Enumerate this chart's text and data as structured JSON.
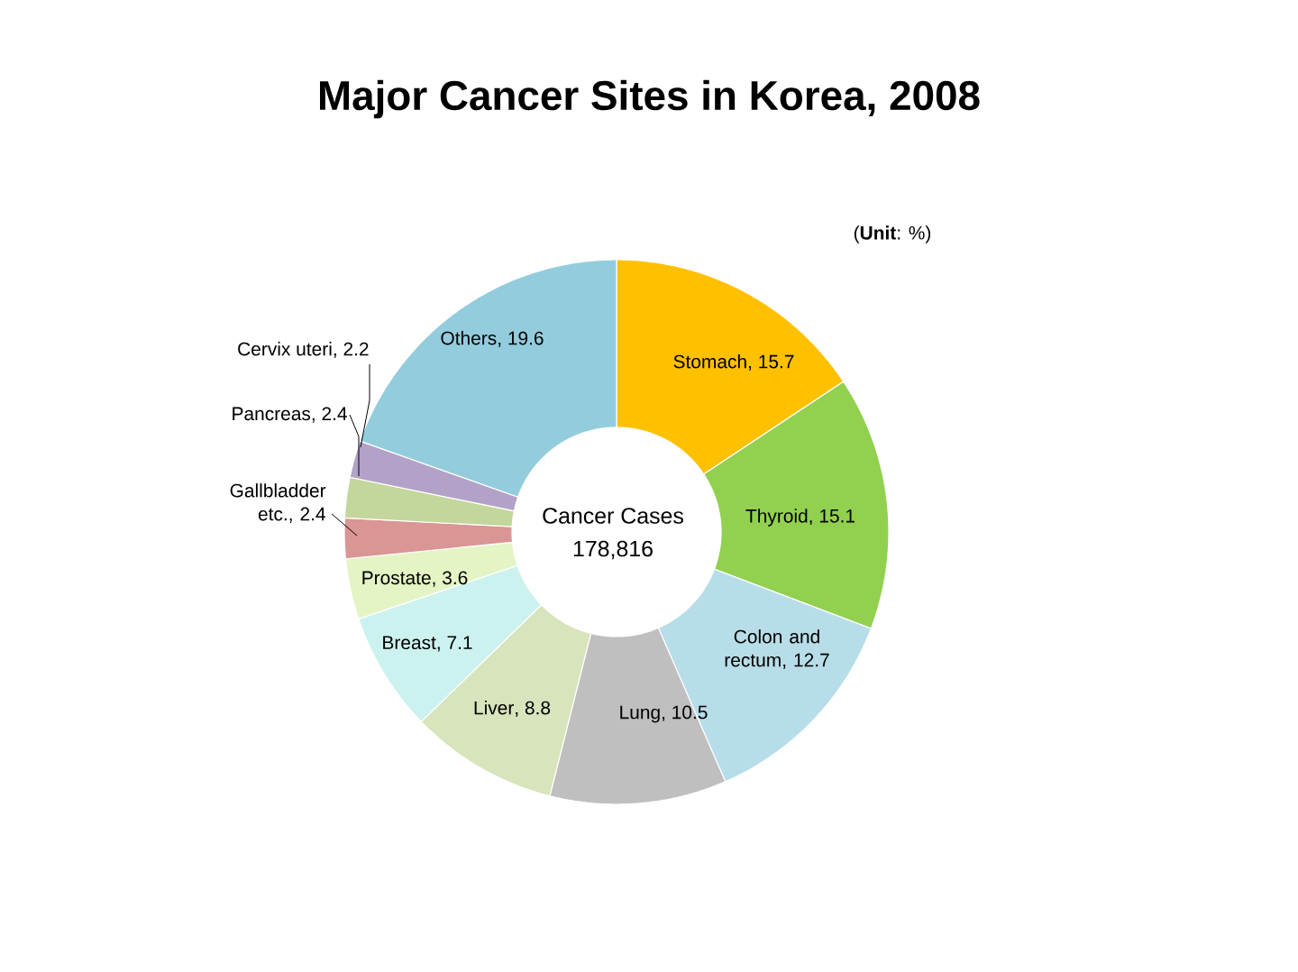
{
  "chart_data": {
    "type": "donut",
    "title": "Major Cancer Sites in Korea, 2008",
    "categories": [
      "Stomach",
      "Thyroid",
      "Colon and rectum",
      "Lung",
      "Liver",
      "Breast",
      "Prostate",
      "Gallbladder etc.",
      "Pancreas",
      "Cervix uteri",
      "Others"
    ],
    "values": [
      15.7,
      15.1,
      12.7,
      10.5,
      8.8,
      7.1,
      3.6,
      2.4,
      2.4,
      2.2,
      19.6
    ],
    "colors": [
      "#ffc000",
      "#92d050",
      "#b7dde8",
      "#bfbfbf",
      "#d7e4bc",
      "#ccf2ef",
      "#e4f4c4",
      "#d99694",
      "#c3d69b",
      "#b3a2c7",
      "#93cddd"
    ],
    "value_labels": [
      ", 15.7",
      ", 15.1",
      ", 12.7",
      ", 10.5",
      ", 8.8",
      ", 7.1",
      ", 3.6",
      ", 2.4",
      ", 2.4",
      ", 2.2",
      ", 19.6"
    ],
    "annotations": [
      "(**Unit**: %)",
      "Cancer Cases",
      "178,816"
    ]
  }
}
